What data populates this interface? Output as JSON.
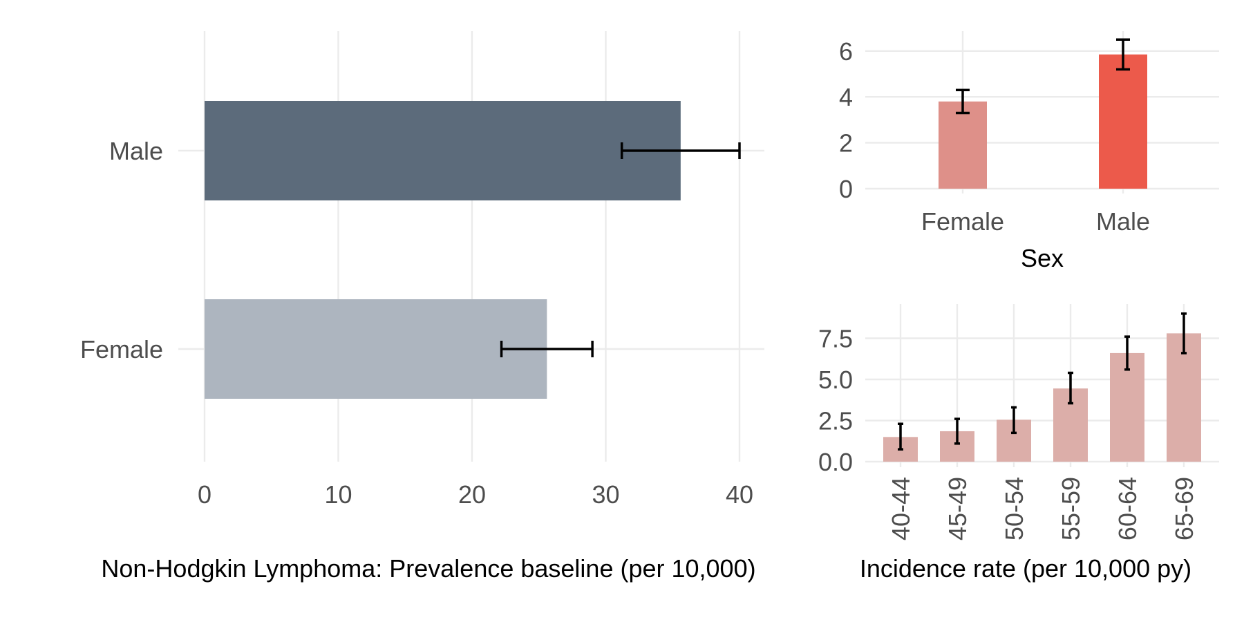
{
  "chart_data": [
    {
      "type": "bar",
      "orientation": "horizontal",
      "title": "",
      "xlabel": "Non-Hodgkin Lymphoma: Prevalence baseline (per 10,000)",
      "ylabel": "",
      "categories": [
        "Female",
        "Male"
      ],
      "values": [
        25.6,
        35.6
      ],
      "error_low": [
        22.2,
        31.2
      ],
      "error_high": [
        29.0,
        40.0
      ],
      "colors": [
        "#adb5bf",
        "#5c6b7b"
      ],
      "xlim": [
        0,
        42
      ],
      "xticks": [
        0,
        10,
        20,
        30,
        40
      ],
      "grid": true
    },
    {
      "type": "bar",
      "title": "",
      "xlabel": "Sex",
      "ylabel": "",
      "categories": [
        "Female",
        "Male"
      ],
      "values": [
        3.8,
        5.85
      ],
      "error_low": [
        3.3,
        5.2
      ],
      "error_high": [
        4.3,
        6.5
      ],
      "colors": [
        "#de9089",
        "#ec5a4b"
      ],
      "ylim": [
        0,
        6.8
      ],
      "yticks": [
        0,
        2,
        4,
        6
      ],
      "grid": true
    },
    {
      "type": "bar",
      "title": "",
      "xlabel": "Incidence rate (per 10,000 py)",
      "ylabel": "",
      "categories": [
        "40-44",
        "45-49",
        "50-54",
        "55-59",
        "60-64",
        "65-69"
      ],
      "values": [
        1.5,
        1.85,
        2.55,
        4.45,
        6.6,
        7.8
      ],
      "error_low": [
        0.75,
        1.1,
        1.75,
        3.55,
        5.6,
        6.6
      ],
      "error_high": [
        2.3,
        2.6,
        3.3,
        5.4,
        7.6,
        9.0
      ],
      "colors": [
        "#dcaea9"
      ],
      "ylim": [
        0,
        9.4
      ],
      "yticks": [
        0.0,
        2.5,
        5.0,
        7.5
      ],
      "ytick_labels": [
        "0.0",
        "2.5",
        "5.0",
        "7.5"
      ],
      "grid": true
    }
  ]
}
